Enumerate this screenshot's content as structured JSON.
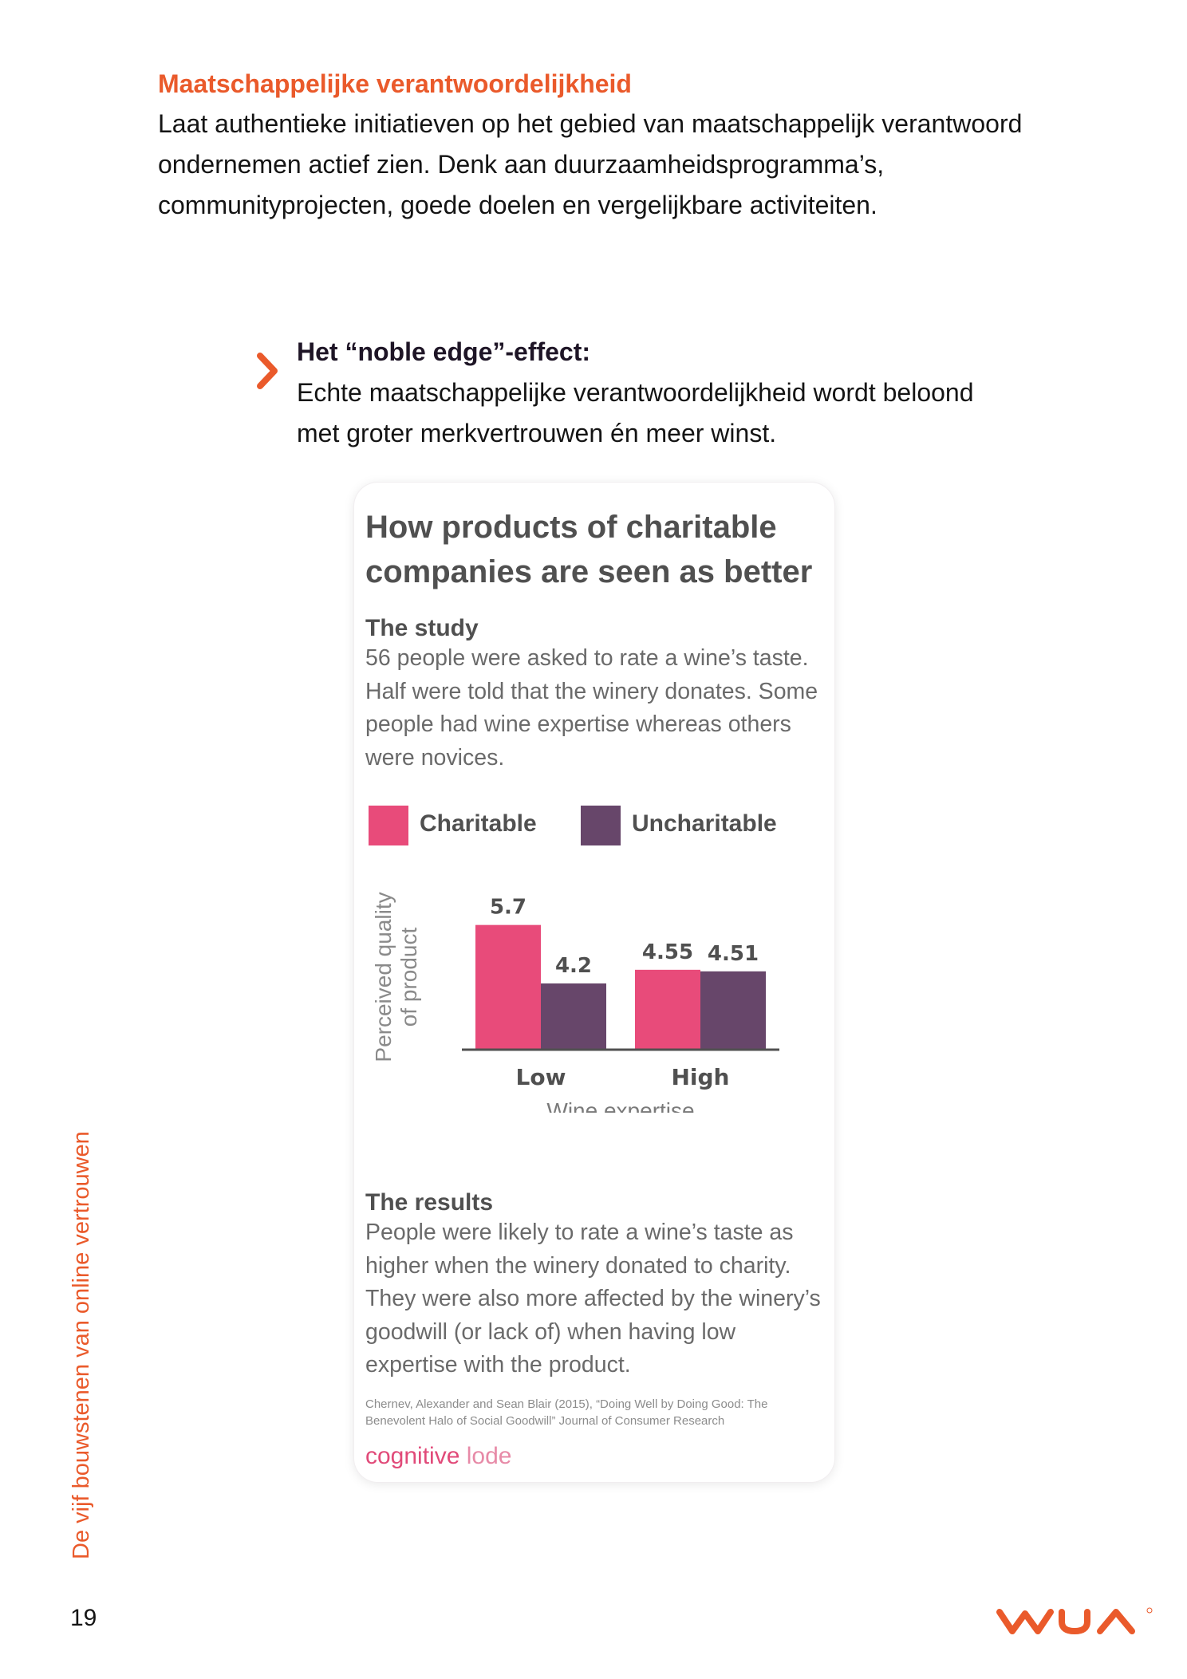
{
  "section": {
    "heading": "Maatschappelijke verantwoordelijkheid",
    "body": "Laat authentieke initiatieven op het gebied van maatschappelijk verantwoord ondernemen actief zien. Denk aan duurzaamheidsprogramma’s, communityprojecten, goede doelen en vergelijkbare activiteiten."
  },
  "callout": {
    "icon": "chevron-right-icon",
    "title": "Het “noble edge”-effect:",
    "body": "Echte maatschappelijke verantwoordelijkheid wordt beloond met groter merkvertrouwen én meer winst."
  },
  "infographic": {
    "title": "How products of charitable companies are seen as better",
    "study_heading": "The study",
    "study_text": "56 people were asked to rate a wine’s taste. Half were told that the winery donates. Some people had wine expertise whereas others were novices.",
    "results_heading": "The results",
    "results_text": "People were likely to rate a wine’s taste as higher when the winery donated to charity. They were also more affected by the winery’s goodwill (or lack of) when having low expertise with the product.",
    "citation": "Chernev, Alexander and Sean Blair (2015), “Doing Well by Doing Good: The Benevolent Halo of Social Goodwill” Journal of Consumer Research",
    "brand_part1": "cognitive",
    "brand_part2": "lode"
  },
  "chart_data": {
    "type": "bar",
    "categories": [
      "Low",
      "High"
    ],
    "series": [
      {
        "name": "Charitable",
        "values": [
          5.7,
          4.55
        ],
        "labels": [
          "5.7",
          "4.55"
        ],
        "color": "#e84b7a"
      },
      {
        "name": "Uncharitable",
        "values": [
          4.2,
          4.51
        ],
        "labels": [
          "4.2",
          "4.51"
        ],
        "color": "#67466a"
      }
    ],
    "xlabel": "Wine expertise",
    "ylabel": "Perceived quality of product",
    "ylabel_lines": [
      "Perceived quality",
      "of product"
    ],
    "ylim": [
      2.5,
      6
    ],
    "grid": false,
    "legend": "top"
  },
  "footer": {
    "side_label": "De vijf bouwstenen van online vertrouwen",
    "page_number": "19",
    "logo": "wua-logo"
  },
  "colors": {
    "accent": "#ea5a2b",
    "charitable": "#e84b7a",
    "uncharitable": "#67466a"
  }
}
